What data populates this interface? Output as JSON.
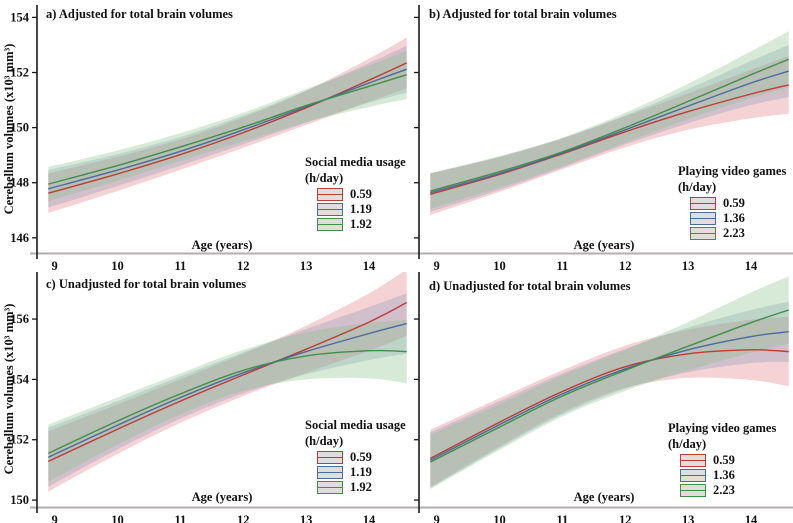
{
  "figure": {
    "background": "#ffffff",
    "axis_color": "#1a1a1a",
    "baseline_color": "#b0aeae",
    "text_color": "#111111"
  },
  "chart_data": {
    "type": "line",
    "panels": [
      {
        "id": "a",
        "title": "a)  Adjusted for total brain volumes",
        "xlabel": "Age (years)",
        "ylabel": "Cerebellum volumes (x10³ mm³)",
        "xlim": [
          8.72,
          14.62
        ],
        "ylim": [
          145.45,
          154.45
        ],
        "xticks": [
          9,
          10,
          11,
          12,
          13,
          14
        ],
        "yticks": [
          146,
          148,
          150,
          152,
          154
        ],
        "show_ytick_labels": true,
        "legend": {
          "title": "Social media usage",
          "subtitle": "(h/day)"
        },
        "x": [
          8.9,
          10,
          11,
          12,
          13,
          14,
          14.6
        ],
        "series": [
          {
            "name": "0.59",
            "color": "#bf3b36",
            "band_color": "rgba(225,115,120,0.32)",
            "y": [
              147.62,
              148.32,
              149.02,
              149.82,
              150.72,
              151.72,
              152.35
            ],
            "band_halfwidth": [
              0.72,
              0.62,
              0.55,
              0.55,
              0.62,
              0.78,
              0.92
            ]
          },
          {
            "name": "1.19",
            "color": "#4a6b9d",
            "band_color": "rgba(125,150,185,0.30)",
            "y": [
              147.78,
              148.46,
              149.14,
              149.92,
              150.76,
              151.62,
              152.12
            ],
            "band_halfwidth": [
              0.68,
              0.58,
              0.52,
              0.52,
              0.58,
              0.72,
              0.85
            ]
          },
          {
            "name": "1.92",
            "color": "#3f8f48",
            "band_color": "rgba(135,190,135,0.33)",
            "y": [
              147.95,
              148.62,
              149.3,
              150.02,
              150.8,
              151.5,
              151.92
            ],
            "band_halfwidth": [
              0.62,
              0.55,
              0.5,
              0.52,
              0.6,
              0.75,
              0.88
            ]
          }
        ]
      },
      {
        "id": "b",
        "title": "b)  Adjusted for total brain volumes",
        "xlabel": "Age (years)",
        "xlim": [
          8.72,
          14.62
        ],
        "ylim": [
          145.45,
          154.45
        ],
        "xticks": [
          9,
          10,
          11,
          12,
          13,
          14
        ],
        "yticks": [
          146,
          148,
          150,
          152,
          154
        ],
        "show_ytick_labels": false,
        "legend": {
          "title": "Playing video games",
          "subtitle": "(h/day)"
        },
        "x": [
          8.9,
          10,
          11,
          12,
          13,
          14,
          14.6
        ],
        "series": [
          {
            "name": "0.59",
            "color": "#bf3b36",
            "band_color": "rgba(225,115,120,0.32)",
            "y": [
              147.58,
              148.3,
              149.05,
              149.85,
              150.58,
              151.22,
              151.55
            ],
            "band_halfwidth": [
              0.75,
              0.63,
              0.56,
              0.56,
              0.66,
              0.88,
              1.05
            ]
          },
          {
            "name": "1.36",
            "color": "#4a6b9d",
            "band_color": "rgba(125,150,185,0.30)",
            "y": [
              147.64,
              148.34,
              149.08,
              149.92,
              150.78,
              151.62,
              152.05
            ],
            "band_halfwidth": [
              0.7,
              0.6,
              0.53,
              0.53,
              0.62,
              0.8,
              0.95
            ]
          },
          {
            "name": "2.23",
            "color": "#3f8f48",
            "band_color": "rgba(135,190,135,0.33)",
            "y": [
              147.7,
              148.4,
              149.12,
              150.0,
              150.95,
              151.92,
              152.48
            ],
            "band_halfwidth": [
              0.65,
              0.57,
              0.52,
              0.54,
              0.64,
              0.85,
              1.02
            ]
          }
        ]
      },
      {
        "id": "c",
        "title": "c)  Unadjusted for total brain volumes",
        "xlabel": "Age (years)",
        "ylabel": "Cerebellum volumes (x10³ mm³)",
        "xlim": [
          8.72,
          14.62
        ],
        "ylim": [
          149.77,
          157.56
        ],
        "xticks": [
          9,
          10,
          11,
          12,
          13,
          14
        ],
        "yticks": [
          150,
          152,
          154,
          156
        ],
        "show_ytick_labels": true,
        "legend": {
          "title": "Social media usage",
          "subtitle": "(h/day)"
        },
        "x": [
          8.9,
          10,
          11,
          12,
          13,
          14,
          14.6
        ],
        "series": [
          {
            "name": "0.59",
            "color": "#bf3b36",
            "band_color": "rgba(225,115,120,0.32)",
            "y": [
              151.28,
              152.35,
              153.28,
              154.15,
              155.0,
              155.9,
              156.55
            ],
            "band_halfwidth": [
              1.0,
              0.82,
              0.72,
              0.7,
              0.78,
              0.95,
              1.1
            ]
          },
          {
            "name": "1.19",
            "color": "#4a6b9d",
            "band_color": "rgba(125,150,185,0.30)",
            "y": [
              151.42,
              152.48,
              153.4,
              154.22,
              154.92,
              155.52,
              155.85
            ],
            "band_halfwidth": [
              0.98,
              0.8,
              0.7,
              0.68,
              0.75,
              0.88,
              1.0
            ]
          },
          {
            "name": "1.92",
            "color": "#3f8f48",
            "band_color": "rgba(135,190,135,0.33)",
            "y": [
              151.55,
              152.62,
              153.52,
              154.3,
              154.78,
              154.95,
              154.92
            ],
            "band_halfwidth": [
              0.95,
              0.78,
              0.68,
              0.68,
              0.78,
              0.92,
              1.05
            ]
          }
        ]
      },
      {
        "id": "d",
        "title": "d)  Unadjusted for total brain volumes",
        "xlabel": "Age (years)",
        "xlim": [
          8.72,
          14.62
        ],
        "ylim": [
          149.77,
          157.56
        ],
        "xticks": [
          9,
          10,
          11,
          12,
          13,
          14
        ],
        "yticks": [
          150,
          152,
          154,
          156
        ],
        "show_ytick_labels": false,
        "legend": {
          "title": "Playing video games",
          "subtitle": "(h/day)"
        },
        "x": [
          8.9,
          10,
          11,
          12,
          13,
          14,
          14.6
        ],
        "series": [
          {
            "name": "0.59",
            "color": "#bf3b36",
            "band_color": "rgba(225,115,120,0.32)",
            "y": [
              151.38,
              152.58,
              153.6,
              154.42,
              154.85,
              154.98,
              154.92
            ],
            "band_halfwidth": [
              0.95,
              0.8,
              0.7,
              0.7,
              0.8,
              1.0,
              1.15
            ]
          },
          {
            "name": "1.36",
            "color": "#4a6b9d",
            "band_color": "rgba(125,150,185,0.30)",
            "y": [
              151.32,
              152.5,
              153.52,
              154.35,
              154.98,
              155.42,
              155.58
            ],
            "band_halfwidth": [
              0.92,
              0.78,
              0.68,
              0.66,
              0.74,
              0.88,
              1.0
            ]
          },
          {
            "name": "2.23",
            "color": "#3f8f48",
            "band_color": "rgba(135,190,135,0.33)",
            "y": [
              151.26,
              152.42,
              153.45,
              154.3,
              155.1,
              155.88,
              156.3
            ],
            "band_halfwidth": [
              0.9,
              0.76,
              0.68,
              0.68,
              0.8,
              1.0,
              1.12
            ]
          }
        ]
      }
    ]
  }
}
